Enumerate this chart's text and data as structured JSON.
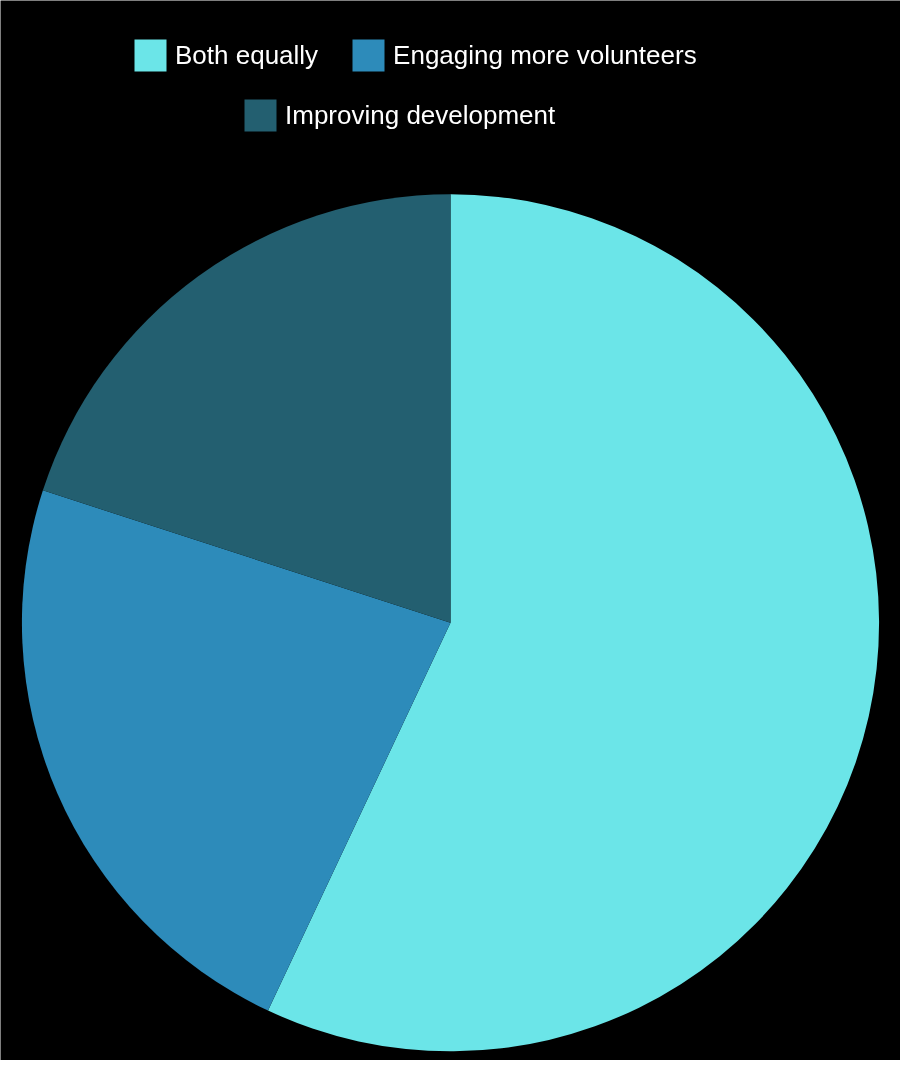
{
  "chart_data": {
    "type": "pie",
    "categories": [
      "Both equally",
      "Engaging more volunteers",
      "Improving development"
    ],
    "values": [
      57,
      23,
      20
    ],
    "colors": [
      "#6be5e8",
      "#2d8bba",
      "#235f70"
    ],
    "legend": "top"
  }
}
